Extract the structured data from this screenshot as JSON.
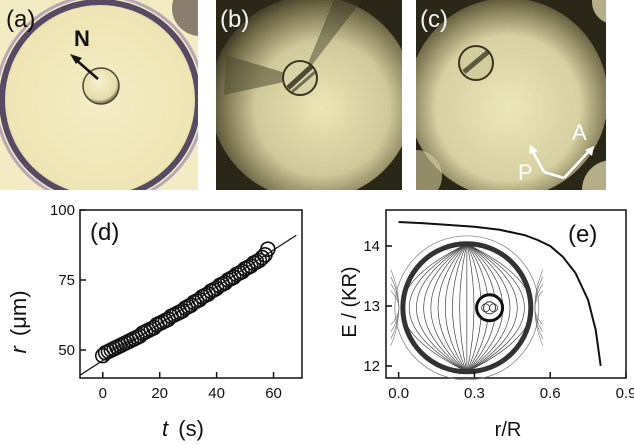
{
  "panels": {
    "a": {
      "label": "(a)",
      "director_label": "N"
    },
    "b": {
      "label": "(b)"
    },
    "c": {
      "label": "(c)",
      "polarizer": "P",
      "analyzer": "A"
    },
    "d": {
      "label": "(d)"
    },
    "e": {
      "label": "(e)"
    }
  },
  "colors": {
    "droplet_bg": "#f0e8bb",
    "droplet_rim": "#4a3d5a",
    "crossed_bg": "#2e2a18",
    "crossed_glow": "#e9e4b4",
    "curve": "#111111",
    "field_lines": "#555555"
  },
  "chart_data": [
    {
      "type": "scatter",
      "panel": "(d)",
      "xlabel_symbol": "t",
      "xlabel_unit": "(s)",
      "ylabel_symbol": "r",
      "ylabel_unit": "(μm)",
      "xlim": [
        -8,
        70
      ],
      "ylim": [
        40,
        100
      ],
      "xticks": [
        0,
        20,
        40,
        60
      ],
      "yticks": [
        50,
        75,
        100
      ],
      "xtick_labels": [
        "0",
        "20",
        "40",
        "60"
      ],
      "ytick_labels": [
        "50",
        "75",
        "100"
      ],
      "fit_line": {
        "x": [
          -8,
          68
        ],
        "y": [
          41,
          91
        ]
      },
      "x": [
        0,
        1,
        2,
        3,
        4,
        5,
        6,
        7,
        8,
        9,
        10,
        11,
        12,
        13,
        14,
        15,
        16,
        17,
        18,
        19,
        20,
        21,
        22,
        23,
        24,
        25,
        26,
        27,
        28,
        29,
        30,
        31,
        32,
        33,
        34,
        35,
        36,
        37,
        38,
        39,
        40,
        41,
        42,
        43,
        44,
        45,
        46,
        47,
        48,
        49,
        50,
        51,
        52,
        53,
        54,
        55,
        56,
        57,
        58
      ],
      "y": [
        48,
        49,
        49.5,
        50,
        50.5,
        51,
        51.5,
        52,
        52.5,
        53,
        53.5,
        54,
        54.5,
        55,
        56,
        56.5,
        57,
        57.5,
        58,
        59,
        59.5,
        60,
        60.5,
        61,
        62,
        62.5,
        63,
        63.5,
        64,
        65,
        65.5,
        66,
        67,
        67.5,
        68,
        69,
        69.5,
        70,
        71,
        71.5,
        72,
        73,
        73.5,
        74,
        75,
        75.5,
        76,
        77,
        77.5,
        78,
        79,
        79.5,
        80,
        81,
        81.5,
        82,
        83,
        84,
        86
      ]
    },
    {
      "type": "line",
      "panel": "(e)",
      "xlabel": "r/R",
      "ylabel": "E / (KR)",
      "xlim": [
        -0.05,
        0.9
      ],
      "ylim": [
        11.8,
        14.6
      ],
      "xticks": [
        0.0,
        0.3,
        0.6,
        0.9
      ],
      "yticks": [
        12,
        13,
        14
      ],
      "xtick_labels": [
        "0.0",
        "0.3",
        "0.6",
        "0.9"
      ],
      "ytick_labels": [
        "12",
        "13",
        "14"
      ],
      "x": [
        0.0,
        0.1,
        0.2,
        0.3,
        0.4,
        0.5,
        0.55,
        0.6,
        0.65,
        0.7,
        0.75,
        0.78,
        0.8
      ],
      "y": [
        14.4,
        14.38,
        14.35,
        14.32,
        14.27,
        14.18,
        14.1,
        14.0,
        13.82,
        13.55,
        13.1,
        12.6,
        12.0
      ]
    }
  ]
}
